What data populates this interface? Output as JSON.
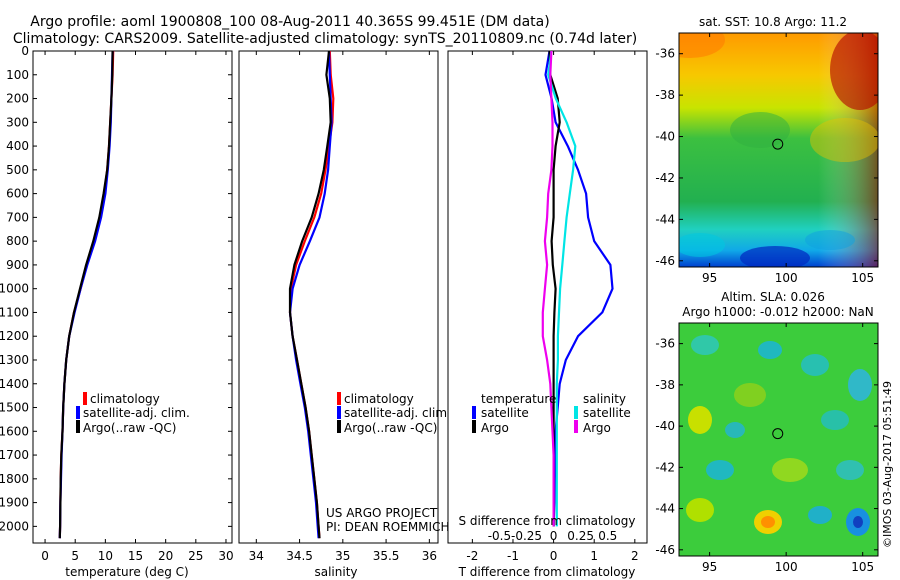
{
  "header": {
    "line1": "Argo profile: aoml 1900808_100 08-Aug-2011 40.365S 99.451E (DM data)",
    "line2": "Climatology: CARS2009. Satellite-adjusted climatology: synTS_20110809.nc (0.74d later)"
  },
  "panels": {
    "temperature": {
      "xlabel": "temperature (deg C)",
      "xlim": [
        -2,
        31
      ],
      "xticks": [
        0,
        5,
        10,
        15,
        20,
        25,
        30
      ],
      "legend": [
        "climatology",
        "satellite-adj. clim.",
        "Argo(..raw -QC)"
      ]
    },
    "salinity": {
      "xlabel": "salinity",
      "xlim": [
        33.8,
        36.1
      ],
      "xticks": [
        34,
        34.5,
        35,
        35.5,
        36
      ],
      "legend": [
        "climatology",
        "satellite-adj. clim.",
        "Argo(..raw -QC)"
      ],
      "project_line1": "US ARGO PROJECT",
      "project_line2": "PI: DEAN ROEMMICH"
    },
    "difference": {
      "xlabel": "T difference from climatology",
      "xlim": [
        -2.6,
        2.3
      ],
      "xticks": [
        -2,
        -1,
        0,
        1,
        2
      ],
      "s_label": "S difference from climatology",
      "s_ticks": [
        "-0.5",
        "-0.25",
        "0",
        "0.25",
        "0.5"
      ],
      "s_tick_values": [
        -0.5,
        -0.25,
        0,
        0.25,
        0.5
      ],
      "legend_temp_title": "temperature",
      "legend_sal_title": "salinity",
      "legend_items": [
        "satellite",
        "Argo",
        "satellite",
        "Argo"
      ]
    }
  },
  "depth_axis": {
    "ylim": [
      0,
      2070
    ],
    "ticks": [
      0,
      100,
      200,
      300,
      400,
      500,
      600,
      700,
      800,
      900,
      1000,
      1100,
      1200,
      1300,
      1400,
      1500,
      1600,
      1700,
      1800,
      1900,
      2000
    ]
  },
  "maps": {
    "sst_title": "sat. SST: 10.8 Argo: 11.2",
    "sla_title1": "Altim. SLA: 0.026",
    "sla_title2": "Argo h1000: -0.012 h2000: NaN",
    "lat_ticks": [
      -36,
      -38,
      -40,
      -42,
      -44,
      -46
    ],
    "lon_ticks": [
      95,
      100,
      105
    ],
    "lat_range": [
      -35,
      -46.3
    ],
    "lon_range": [
      93,
      106
    ],
    "argo_position": {
      "lon": 99.451,
      "lat": -40.365
    },
    "stamp": "©IMOS 03-Aug-2017 05:51:49"
  },
  "colors": {
    "climatology": "#ff0000",
    "satellite": "#0000ff",
    "argo": "#000000",
    "satellite_salinity": "#00e5e5",
    "argo_salinity": "#ee00ee"
  },
  "chart_data": [
    {
      "type": "line",
      "title": "",
      "xlabel": "temperature (deg C)",
      "ylabel": "",
      "xlim": [
        -2,
        31
      ],
      "ylim": [
        2070,
        0
      ],
      "series": [
        {
          "name": "climatology",
          "x": [
            11.3,
            11.2,
            11.0,
            10.8,
            10.6,
            10.3,
            9.8,
            9.2,
            8.2,
            6.9,
            5.9,
            4.8,
            4.0,
            3.5,
            3.2,
            3.0,
            2.9,
            2.7,
            2.6,
            2.55,
            2.5,
            2.45
          ],
          "y": [
            0,
            100,
            200,
            300,
            400,
            500,
            600,
            700,
            800,
            900,
            1000,
            1100,
            1200,
            1300,
            1400,
            1500,
            1600,
            1700,
            1800,
            1900,
            2000,
            2050
          ]
        },
        {
          "name": "satellite-adj. clim.",
          "x": [
            11.2,
            11.1,
            11.0,
            10.9,
            10.7,
            10.4,
            10.0,
            9.3,
            8.3,
            7.0,
            5.9,
            4.9,
            4.0,
            3.5,
            3.2,
            3.0,
            2.9,
            2.75,
            2.65,
            2.55,
            2.5,
            2.45
          ],
          "y": [
            0,
            100,
            200,
            300,
            400,
            500,
            600,
            700,
            800,
            900,
            1000,
            1100,
            1200,
            1300,
            1400,
            1500,
            1600,
            1700,
            1800,
            1900,
            2000,
            2050
          ]
        },
        {
          "name": "Argo(..raw -QC)",
          "x": [
            11.2,
            11.15,
            11.0,
            10.8,
            10.6,
            10.3,
            9.7,
            9.0,
            8.0,
            6.8,
            5.8,
            4.8,
            4.0,
            3.5,
            3.2,
            3.0,
            2.9,
            2.7,
            2.6,
            2.55,
            2.5,
            2.45
          ],
          "y": [
            0,
            100,
            200,
            300,
            400,
            500,
            600,
            700,
            800,
            900,
            1000,
            1100,
            1200,
            1300,
            1400,
            1500,
            1600,
            1700,
            1800,
            1900,
            2000,
            2050
          ]
        }
      ]
    },
    {
      "type": "line",
      "title": "",
      "xlabel": "salinity",
      "ylabel": "",
      "xlim": [
        33.8,
        36.1
      ],
      "ylim": [
        2070,
        0
      ],
      "series": [
        {
          "name": "climatology",
          "x": [
            34.85,
            34.86,
            34.89,
            34.88,
            34.84,
            34.8,
            34.75,
            34.67,
            34.56,
            34.46,
            34.4,
            34.39,
            34.42,
            34.47,
            34.52,
            34.57,
            34.61,
            34.64,
            34.67,
            34.7,
            34.72,
            34.73
          ],
          "y": [
            0,
            100,
            200,
            300,
            400,
            500,
            600,
            700,
            800,
            900,
            1000,
            1100,
            1200,
            1300,
            1400,
            1500,
            1600,
            1700,
            1800,
            1900,
            2000,
            2050
          ]
        },
        {
          "name": "satellite-adj. clim.",
          "x": [
            34.84,
            34.85,
            34.86,
            34.87,
            34.85,
            34.83,
            34.79,
            34.73,
            34.62,
            34.5,
            34.42,
            34.39,
            34.42,
            34.46,
            34.51,
            34.56,
            34.6,
            34.63,
            34.66,
            34.69,
            34.71,
            34.72
          ],
          "y": [
            0,
            100,
            200,
            300,
            400,
            500,
            600,
            700,
            800,
            900,
            1000,
            1100,
            1200,
            1300,
            1400,
            1500,
            1600,
            1700,
            1800,
            1900,
            2000,
            2050
          ]
        },
        {
          "name": "Argo(..raw -QC)",
          "x": [
            34.84,
            34.81,
            34.85,
            34.86,
            34.82,
            34.78,
            34.72,
            34.64,
            34.53,
            34.44,
            34.39,
            34.39,
            34.42,
            34.47,
            34.52,
            34.57,
            34.61,
            34.64,
            34.67,
            34.7,
            34.72,
            34.73
          ],
          "y": [
            0,
            100,
            200,
            300,
            400,
            500,
            600,
            700,
            800,
            900,
            1000,
            1100,
            1200,
            1300,
            1400,
            1500,
            1600,
            1700,
            1800,
            1900,
            2000,
            2050
          ]
        }
      ]
    },
    {
      "type": "line",
      "title": "",
      "xlabel": "T difference from climatology",
      "ylabel": "",
      "xlim": [
        -2.6,
        2.3
      ],
      "ylim": [
        2070,
        0
      ],
      "series": [
        {
          "name": "satellite",
          "x": [
            -0.1,
            -0.2,
            -0.05,
            0.05,
            0.35,
            0.6,
            0.8,
            0.85,
            1.0,
            1.4,
            1.45,
            1.2,
            0.6,
            0.3,
            0.15,
            0.1,
            0.05,
            0.05,
            0.03,
            0.02,
            0.0
          ],
          "y": [
            0,
            100,
            200,
            300,
            400,
            500,
            600,
            700,
            800,
            900,
            1000,
            1100,
            1200,
            1300,
            1400,
            1500,
            1600,
            1700,
            1800,
            1900,
            2000
          ]
        },
        {
          "name": "Argo",
          "x": [
            -0.1,
            -0.08,
            0.1,
            0.15,
            0.05,
            0.0,
            0.0,
            0.0,
            -0.05,
            -0.02,
            0.05,
            0.02,
            0.0,
            0.0,
            0.0,
            0.0,
            0.0,
            0.0,
            0.0,
            0.0,
            0.0
          ],
          "y": [
            0,
            100,
            200,
            300,
            400,
            500,
            600,
            700,
            800,
            900,
            1000,
            1100,
            1200,
            1300,
            1400,
            1500,
            1600,
            1700,
            1800,
            1900,
            2000
          ]
        },
        {
          "name": "satellite (salinity)",
          "x": [
            -0.02,
            -0.05,
            0.02,
            0.12,
            0.2,
            0.18,
            0.15,
            0.12,
            0.1,
            0.08,
            0.06,
            0.05,
            0.04,
            0.04,
            0.03,
            0.03,
            0.03,
            0.03,
            0.03,
            0.03,
            0.03
          ],
          "y": [
            0,
            100,
            200,
            300,
            400,
            500,
            600,
            700,
            800,
            900,
            1000,
            1100,
            1200,
            1300,
            1400,
            1500,
            1600,
            1700,
            1800,
            1900,
            2000
          ]
        },
        {
          "name": "Argo (salinity)",
          "x": [
            -0.02,
            -0.03,
            -0.02,
            -0.01,
            -0.01,
            -0.02,
            -0.05,
            -0.06,
            -0.08,
            -0.06,
            -0.08,
            -0.1,
            -0.1,
            -0.06,
            -0.03,
            -0.02,
            -0.01,
            0.0,
            0.0,
            0.0,
            0.0
          ],
          "y": [
            0,
            100,
            200,
            300,
            400,
            500,
            600,
            700,
            800,
            900,
            1000,
            1100,
            1200,
            1300,
            1400,
            1500,
            1600,
            1700,
            1800,
            1900,
            2000
          ]
        }
      ]
    }
  ]
}
